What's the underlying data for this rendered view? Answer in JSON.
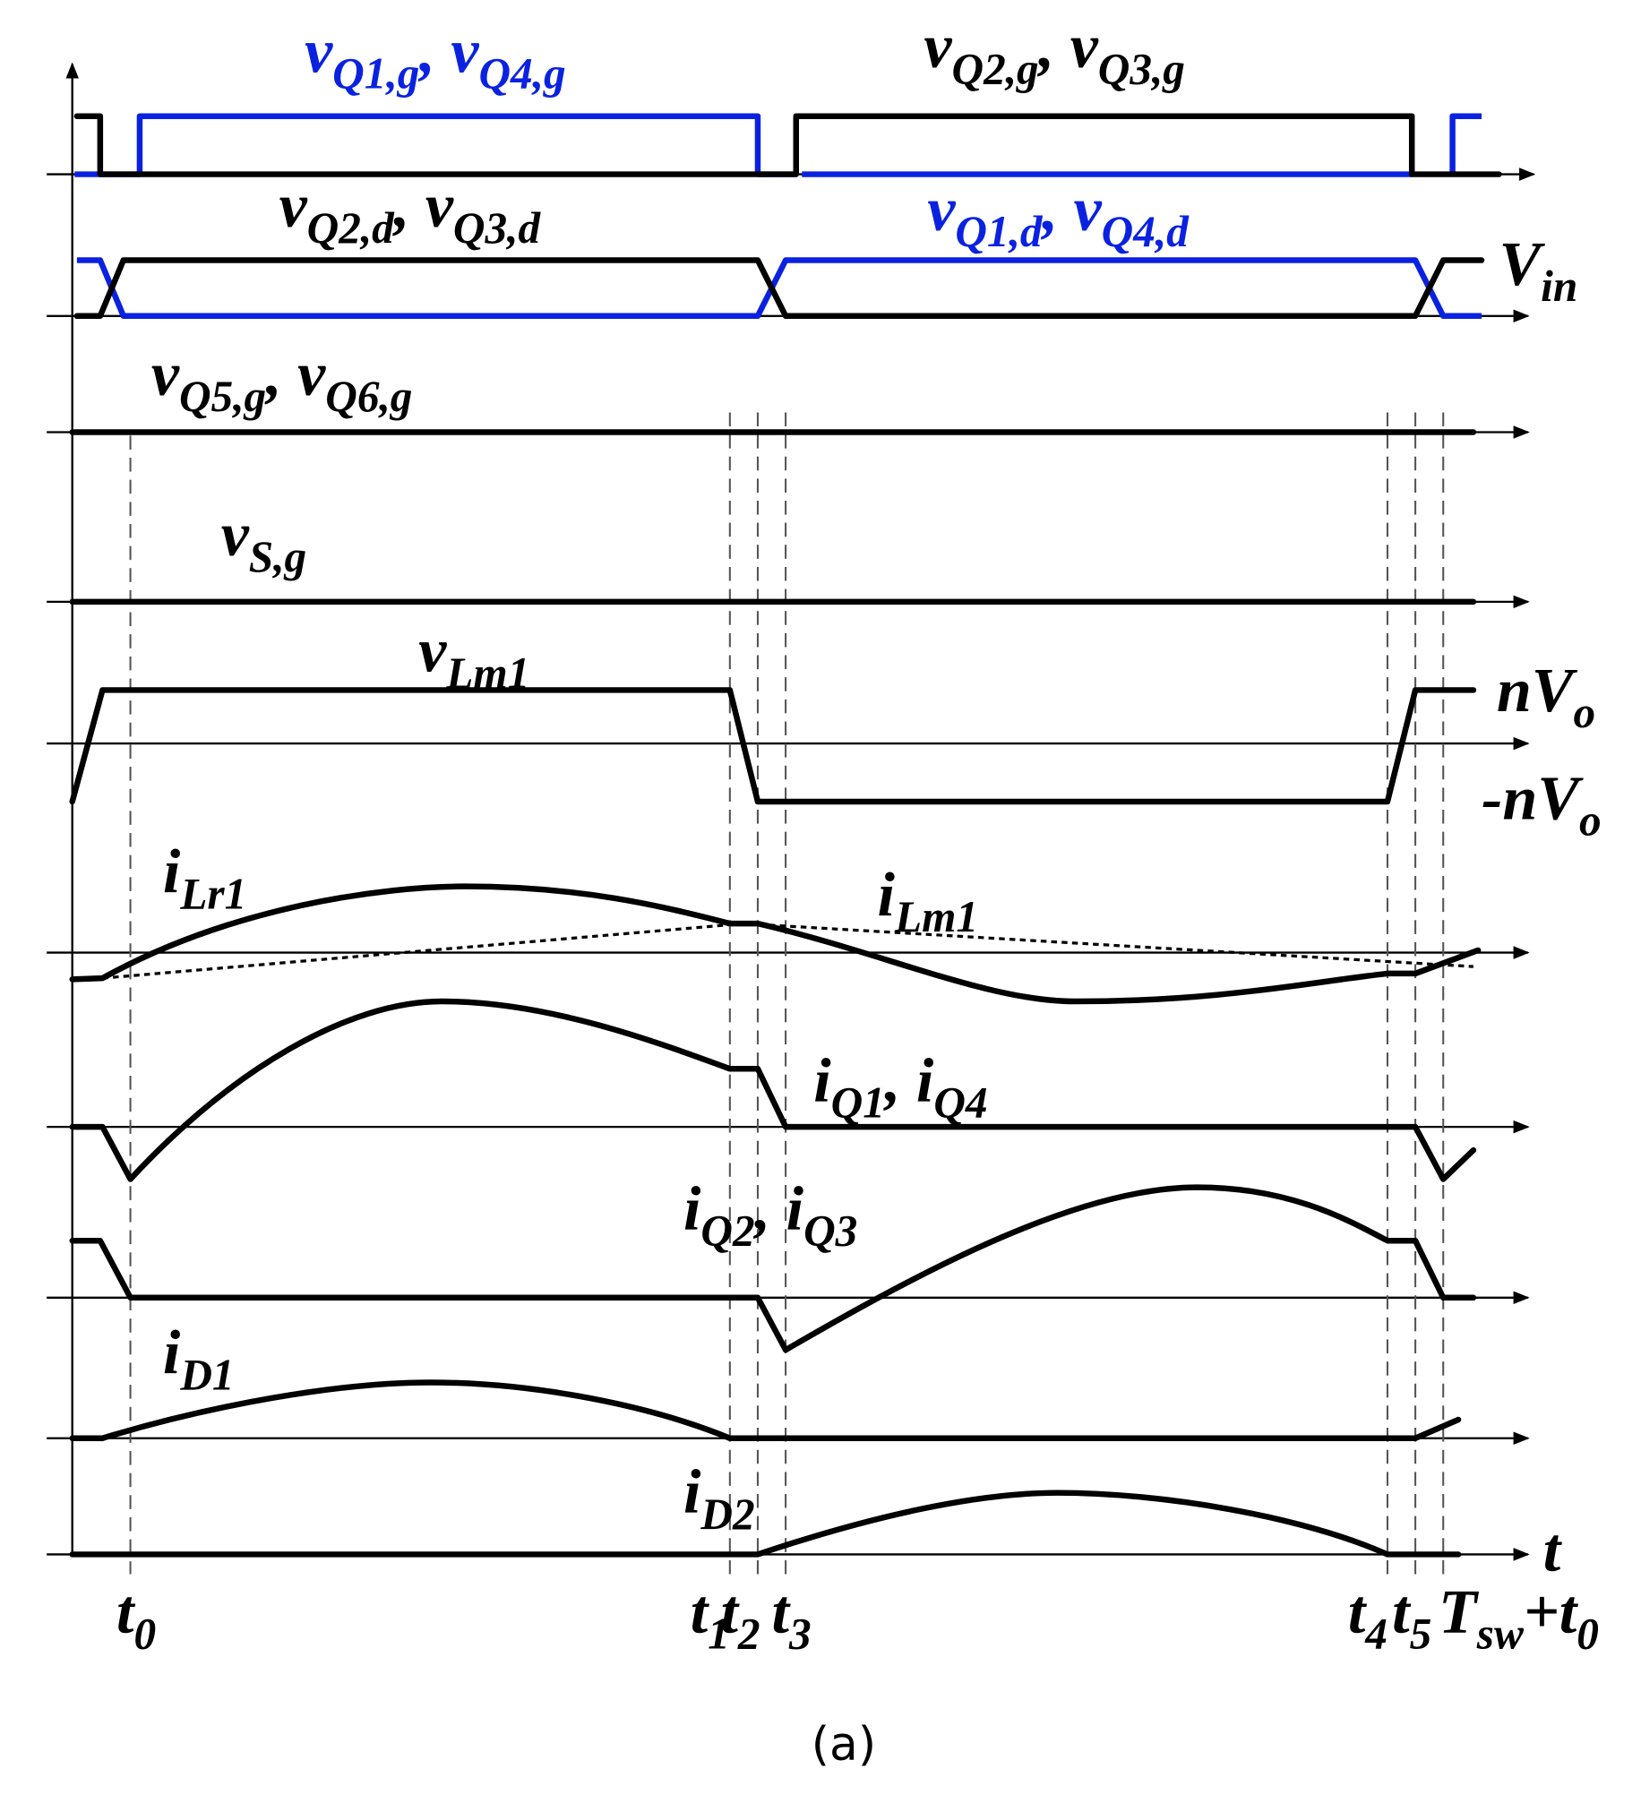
{
  "labels": [
    {
      "parts": [
        "v",
        "Q1,g",
        ", v",
        "Q4,g"
      ]
    },
    {
      "parts": [
        "v",
        "Q2,g",
        ", v",
        "Q3,g"
      ]
    },
    {
      "parts": [
        "v",
        "Q2,d",
        ", v",
        "Q3,d"
      ]
    },
    {
      "parts": [
        "v",
        "Q1,d",
        ", v",
        "Q4,d"
      ]
    },
    {
      "parts": [
        "V",
        "in"
      ]
    },
    {
      "parts": [
        "v",
        "Q5,g",
        ", v",
        "Q6,g"
      ]
    },
    {
      "parts": [
        "v",
        "S,g"
      ]
    },
    {
      "parts": [
        "v",
        "Lm1"
      ]
    },
    {
      "parts": [
        "nV",
        "o"
      ]
    },
    {
      "parts": [
        "-nV",
        "o"
      ]
    },
    {
      "parts": [
        "i",
        "Lr1"
      ]
    },
    {
      "parts": [
        "i",
        "Lm1"
      ]
    },
    {
      "parts": [
        "i",
        "Q1",
        ", i",
        "Q4"
      ]
    },
    {
      "parts": [
        "i",
        "Q2",
        ", i",
        "Q3"
      ]
    },
    {
      "parts": [
        "i",
        "D1"
      ]
    },
    {
      "parts": [
        "i",
        "D2"
      ]
    },
    {
      "parts": [
        "t"
      ]
    }
  ],
  "time_marks": [
    {
      "parts": [
        "t",
        "0"
      ]
    },
    {
      "parts": [
        "t",
        "1"
      ]
    },
    {
      "parts": [
        "t",
        "2"
      ]
    },
    {
      "parts": [
        "t",
        "3"
      ]
    },
    {
      "parts": [
        "t",
        "4"
      ]
    },
    {
      "parts": [
        "t",
        "5"
      ]
    },
    {
      "parts": [
        "T",
        "sw",
        "+t",
        "0"
      ]
    }
  ],
  "caption": "(a)"
}
